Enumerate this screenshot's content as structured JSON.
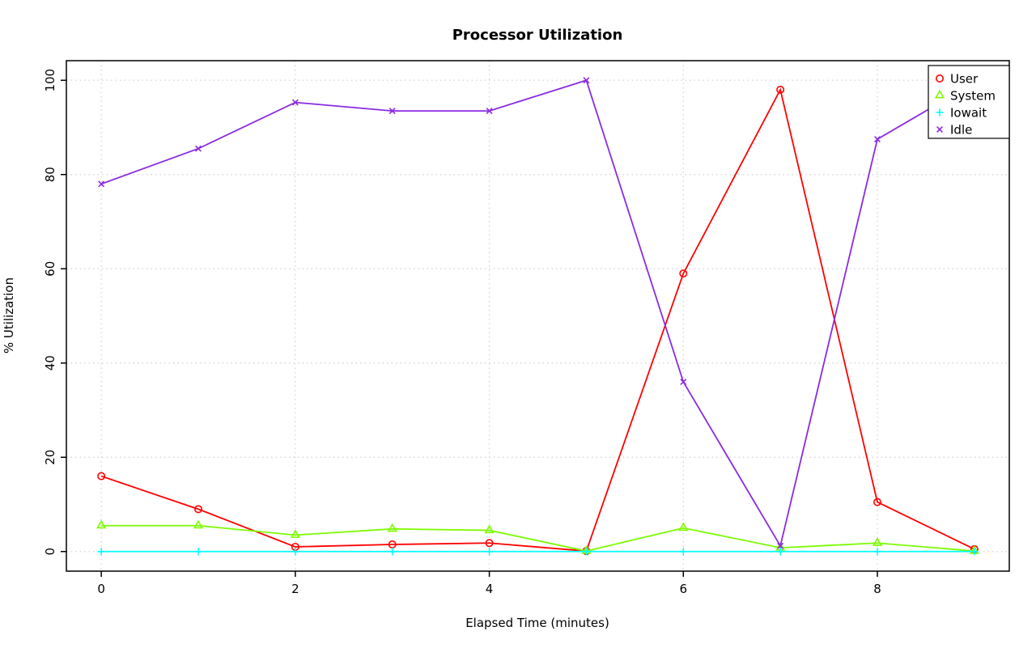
{
  "chart_data": {
    "type": "line",
    "title": "Processor Utilization",
    "xlabel": "Elapsed Time (minutes)",
    "ylabel": "% Utilization",
    "x": [
      0,
      1,
      2,
      3,
      4,
      5,
      6,
      7,
      8,
      9
    ],
    "x_ticks": [
      0,
      2,
      4,
      6,
      8
    ],
    "y_ticks": [
      0,
      20,
      40,
      60,
      80,
      100
    ],
    "xlim": [
      -0.36,
      9.36
    ],
    "ylim": [
      -4.16,
      104.16
    ],
    "grid": true,
    "grid_style": "dotted",
    "legend_position": "top-right",
    "series": [
      {
        "name": "User",
        "color": "#FF0000",
        "marker": "circle",
        "values": [
          16,
          9,
          1,
          1.5,
          1.8,
          0.1,
          59,
          98,
          10.5,
          0.5
        ]
      },
      {
        "name": "System",
        "color": "#7CFC00",
        "marker": "triangle",
        "values": [
          5.5,
          5.5,
          3.5,
          4.8,
          4.5,
          0.1,
          5,
          0.8,
          1.8,
          0.1
        ]
      },
      {
        "name": "Iowait",
        "color": "#00FFFF",
        "marker": "plus",
        "values": [
          0,
          0,
          0,
          0,
          0,
          0,
          0,
          0,
          0,
          0
        ]
      },
      {
        "name": "Idle",
        "color": "#8A2BE2",
        "marker": "x",
        "values": [
          78,
          85.5,
          95.3,
          93.5,
          93.5,
          100,
          36,
          1.2,
          87.5,
          99.5
        ]
      }
    ]
  }
}
